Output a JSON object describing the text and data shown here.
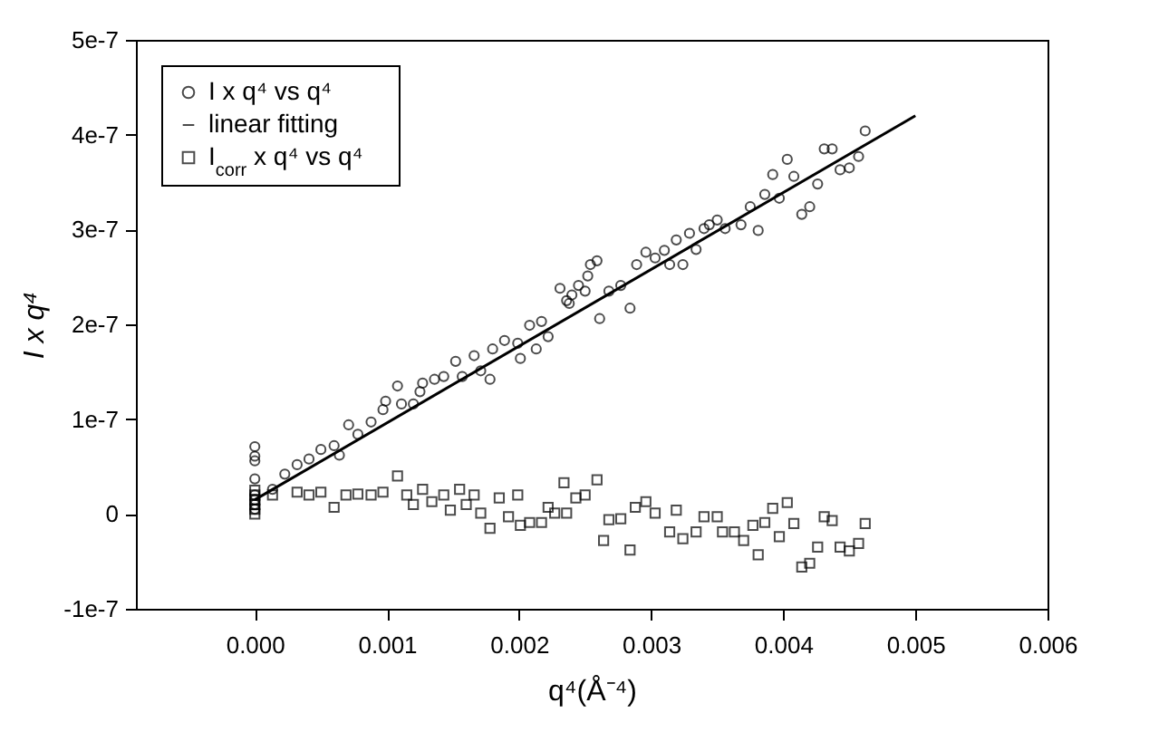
{
  "chart_data": {
    "type": "scatter",
    "xlabel": "q⁴(Å⁻⁴)",
    "ylabel": "I x q⁴",
    "xlim": [
      -0.0009,
      0.006
    ],
    "ylim": [
      -1e-07,
      5e-07
    ],
    "xticks": [
      {
        "value": 0,
        "label": "0.000"
      },
      {
        "value": 0.001,
        "label": "0.001"
      },
      {
        "value": 0.002,
        "label": "0.002"
      },
      {
        "value": 0.003,
        "label": "0.003"
      },
      {
        "value": 0.004,
        "label": "0.004"
      },
      {
        "value": 0.005,
        "label": "0.005"
      },
      {
        "value": 0.006,
        "label": "0.006"
      }
    ],
    "yticks": [
      {
        "value": -1e-07,
        "label": "-1e-7"
      },
      0,
      {
        "value": 1e-07,
        "label": "1e-7"
      },
      {
        "value": 2e-07,
        "label": "2e-7"
      },
      {
        "value": 3e-07,
        "label": "3e-7"
      },
      {
        "value": 4e-07,
        "label": "4e-7"
      },
      {
        "value": 5e-07,
        "label": "5e-7"
      }
    ],
    "grid": false,
    "legend": "top left",
    "series": [
      {
        "name": "I x q⁴ vs q⁴",
        "type": "scatter",
        "marker": "circle",
        "color": "#000000",
        "x": [
          0,
          0,
          0,
          0,
          0,
          0,
          0,
          0,
          0.000134,
          0.000227,
          0.00032,
          0.00041,
          0.0005,
          0.0006,
          0.00064,
          0.00071,
          0.00078,
          0.00088,
          0.00097,
          0.00099,
          0.00108,
          0.00111,
          0.0012,
          0.00125,
          0.00127,
          0.00136,
          0.00143,
          0.00152,
          0.00157,
          0.00166,
          0.00171,
          0.00178,
          0.0018,
          0.00189,
          0.00199,
          0.00201,
          0.00208,
          0.00213,
          0.00217,
          0.00222,
          0.00231,
          0.00236,
          0.0024,
          0.00245,
          0.0025,
          0.00254,
          0.00259,
          0.00261,
          0.00238,
          0.00252,
          0.00268,
          0.00277,
          0.00284,
          0.00289,
          0.00296,
          0.00303,
          0.0031,
          0.00314,
          0.00324,
          0.00319,
          0.00329,
          0.00334,
          0.0034,
          0.00344,
          0.0035,
          0.00356,
          0.00368,
          0.00375,
          0.00381,
          0.00386,
          0.00392,
          0.00397,
          0.00403,
          0.00408,
          0.00414,
          0.0042,
          0.00426,
          0.00431,
          0.00437,
          0.00443,
          0.0045,
          0.00457,
          0.00462
        ],
        "values": [
          7.1e-08,
          6.1e-08,
          5.6e-08,
          3.7e-08,
          2e-08,
          1.5e-08,
          1e-08,
          5e-09,
          2.6e-08,
          4.2e-08,
          5.2e-08,
          5.8e-08,
          6.8e-08,
          7.2e-08,
          6.2e-08,
          9.4e-08,
          8.4e-08,
          9.7e-08,
          1.1e-07,
          1.19e-07,
          1.35e-07,
          1.16e-07,
          1.16e-07,
          1.29e-07,
          1.38e-07,
          1.42e-07,
          1.45e-07,
          1.61e-07,
          1.45e-07,
          1.67e-07,
          1.51e-07,
          1.42e-07,
          1.74e-07,
          1.83e-07,
          1.8e-07,
          1.64e-07,
          1.99e-07,
          1.74e-07,
          2.03e-07,
          1.87e-07,
          2.38e-07,
          2.25e-07,
          2.31e-07,
          2.41e-07,
          2.35e-07,
          2.63e-07,
          2.67e-07,
          2.06e-07,
          2.22e-07,
          2.51e-07,
          2.35e-07,
          2.41e-07,
          2.17e-07,
          2.63e-07,
          2.76e-07,
          2.7e-07,
          2.78e-07,
          2.63e-07,
          2.63e-07,
          2.89e-07,
          2.96e-07,
          2.79e-07,
          3.01e-07,
          3.05e-07,
          3.1e-07,
          3.01e-07,
          3.05e-07,
          3.24e-07,
          2.99e-07,
          3.37e-07,
          3.58e-07,
          3.33e-07,
          3.74e-07,
          3.56e-07,
          3.16e-07,
          3.24e-07,
          3.48e-07,
          3.85e-07,
          3.85e-07,
          3.63e-07,
          3.65e-07,
          3.77e-07,
          4.04e-07
        ]
      },
      {
        "name": "linear fitting",
        "type": "line",
        "line_style": "solid",
        "color": "#000000",
        "x": [
          0,
          0.005
        ],
        "values": [
          1.5e-08,
          4.2e-07
        ]
      },
      {
        "name": "I$_{corr}$ x q⁴  vs q⁴",
        "type": "scatter",
        "marker": "square",
        "color": "#000000",
        "x": [
          0,
          0,
          0,
          0,
          0,
          0,
          0.000134,
          0.00032,
          0.00041,
          0.0005,
          0.0006,
          0.00069,
          0.00078,
          0.00088,
          0.00097,
          0.00108,
          0.00115,
          0.0012,
          0.00127,
          0.00134,
          0.00143,
          0.00148,
          0.00155,
          0.0016,
          0.00166,
          0.00171,
          0.00178,
          0.00185,
          0.00192,
          0.00199,
          0.00201,
          0.00208,
          0.00217,
          0.00222,
          0.00227,
          0.00234,
          0.00236,
          0.00243,
          0.0025,
          0.00259,
          0.00264,
          0.00268,
          0.00277,
          0.00284,
          0.00288,
          0.00296,
          0.00303,
          0.00314,
          0.00319,
          0.00324,
          0.00334,
          0.0034,
          0.0035,
          0.00354,
          0.00363,
          0.0037,
          0.00377,
          0.00381,
          0.00386,
          0.00392,
          0.00397,
          0.00403,
          0.00408,
          0.00414,
          0.0042,
          0.00426,
          0.00431,
          0.00437,
          0.00443,
          0.0045,
          0.00457,
          0.00462
        ],
        "values": [
          2.5e-08,
          2e-08,
          1.5e-08,
          1e-08,
          5e-09,
          0,
          2e-08,
          2.3e-08,
          2e-08,
          2.3e-08,
          7e-09,
          2e-08,
          2.1e-08,
          2e-08,
          2.3e-08,
          4e-08,
          2e-08,
          1e-08,
          2.6e-08,
          1.3e-08,
          2e-08,
          4e-09,
          2.6e-08,
          1e-08,
          2e-08,
          1e-09,
          -1.5e-08,
          1.7e-08,
          -3e-09,
          2e-08,
          -1.2e-08,
          -9e-09,
          -9e-09,
          7e-09,
          1e-09,
          3.3e-08,
          1e-09,
          1.7e-08,
          2e-08,
          3.6e-08,
          -2.8e-08,
          -6e-09,
          -5e-09,
          -3.8e-08,
          7e-09,
          1.3e-08,
          1e-09,
          -1.9e-08,
          4e-09,
          -2.6e-08,
          -1.9e-08,
          -3e-09,
          -3e-09,
          -1.9e-08,
          -1.9e-08,
          -2.8e-08,
          -1.2e-08,
          -4.3e-08,
          -9e-09,
          6e-09,
          -2.4e-08,
          1.2e-08,
          -1e-08,
          -5.6e-08,
          -5.2e-08,
          -3.5e-08,
          -3e-09,
          -7e-09,
          -3.5e-08,
          -3.9e-08,
          -3.1e-08,
          -1e-08
        ]
      }
    ]
  }
}
